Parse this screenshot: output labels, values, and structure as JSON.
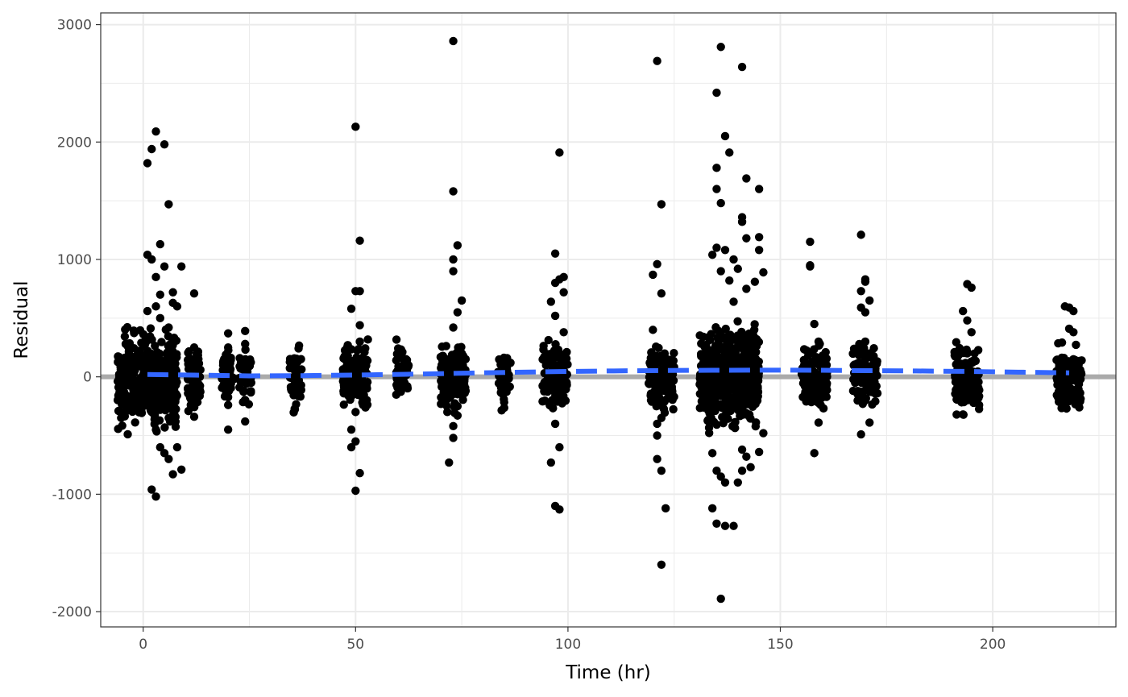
{
  "chart_data": {
    "type": "scatter",
    "title": "",
    "xlabel": "Time (hr)",
    "ylabel": "Residual",
    "xlim": [
      -10,
      229
    ],
    "ylim": [
      -2130,
      3100
    ],
    "x_ticks": [
      0,
      50,
      100,
      150,
      200
    ],
    "x_tick_labels": [
      "0",
      "50",
      "100",
      "150",
      "200"
    ],
    "y_ticks": [
      -2000,
      -1000,
      0,
      1000,
      2000,
      3000
    ],
    "y_tick_labels": [
      "-2000",
      "-1000",
      "0",
      "1000",
      "2000",
      "3000"
    ],
    "grid": true,
    "reference_line": {
      "y": 0,
      "color": "#aaaaaa"
    },
    "smooth_line": {
      "style": "dashed",
      "color": "#3366ff",
      "points": [
        [
          1,
          20
        ],
        [
          12,
          15
        ],
        [
          25,
          8
        ],
        [
          37,
          10
        ],
        [
          50,
          15
        ],
        [
          62,
          22
        ],
        [
          74,
          30
        ],
        [
          86,
          38
        ],
        [
          98,
          45
        ],
        [
          110,
          50
        ],
        [
          122,
          54
        ],
        [
          134,
          56
        ],
        [
          146,
          57
        ],
        [
          158,
          56
        ],
        [
          170,
          53
        ],
        [
          182,
          50
        ],
        [
          194,
          46
        ],
        [
          206,
          40
        ],
        [
          218,
          34
        ]
      ]
    },
    "points_color": "#000000",
    "points": [
      [
        1,
        1040
      ],
      [
        1,
        1820
      ],
      [
        2,
        1940
      ],
      [
        3,
        2090
      ],
      [
        4,
        1130
      ],
      [
        5,
        1980
      ],
      [
        6,
        1470
      ],
      [
        2,
        1000
      ],
      [
        3,
        850
      ],
      [
        5,
        940
      ],
      [
        7,
        720
      ],
      [
        8,
        600
      ],
      [
        9,
        940
      ],
      [
        3,
        600
      ],
      [
        4,
        500
      ],
      [
        6,
        420
      ],
      [
        2,
        -960
      ],
      [
        3,
        -1020
      ],
      [
        4,
        -600
      ],
      [
        5,
        -650
      ],
      [
        6,
        -700
      ],
      [
        7,
        -830
      ],
      [
        9,
        -790
      ],
      [
        8,
        -600
      ],
      [
        3,
        -450
      ],
      [
        2,
        -300
      ],
      [
        6,
        -350
      ],
      [
        1,
        560
      ],
      [
        4,
        700
      ],
      [
        7,
        630
      ],
      [
        12,
        710
      ],
      [
        12,
        250
      ],
      [
        12,
        -340
      ],
      [
        13,
        150
      ],
      [
        12,
        -100
      ],
      [
        20,
        370
      ],
      [
        20,
        250
      ],
      [
        20,
        -450
      ],
      [
        20,
        -240
      ],
      [
        24,
        390
      ],
      [
        24,
        280
      ],
      [
        24,
        -380
      ],
      [
        24,
        -200
      ],
      [
        24,
        50
      ],
      [
        36,
        50
      ],
      [
        36,
        -40
      ],
      [
        36,
        20
      ],
      [
        48,
        250
      ],
      [
        49,
        580
      ],
      [
        50,
        730
      ],
      [
        51,
        730
      ],
      [
        50,
        2130
      ],
      [
        51,
        1160
      ],
      [
        51,
        440
      ],
      [
        50,
        -970
      ],
      [
        50,
        -550
      ],
      [
        51,
        -820
      ],
      [
        49,
        -450
      ],
      [
        49,
        -600
      ],
      [
        51,
        300
      ],
      [
        50,
        -300
      ],
      [
        61,
        50
      ],
      [
        61,
        -30
      ],
      [
        61,
        10
      ],
      [
        72,
        -730
      ],
      [
        73,
        -520
      ],
      [
        73,
        1580
      ],
      [
        73,
        900
      ],
      [
        73,
        1000
      ],
      [
        74,
        1120
      ],
      [
        74,
        550
      ],
      [
        75,
        650
      ],
      [
        73,
        2860
      ],
      [
        72,
        150
      ],
      [
        74,
        -250
      ],
      [
        73,
        -420
      ],
      [
        74,
        -330
      ],
      [
        73,
        420
      ],
      [
        75,
        200
      ],
      [
        85,
        40
      ],
      [
        85,
        -20
      ],
      [
        85,
        10
      ],
      [
        96,
        -730
      ],
      [
        97,
        -1100
      ],
      [
        98,
        -1130
      ],
      [
        97,
        1050
      ],
      [
        98,
        1910
      ],
      [
        99,
        850
      ],
      [
        97,
        800
      ],
      [
        98,
        830
      ],
      [
        99,
        720
      ],
      [
        96,
        640
      ],
      [
        97,
        520
      ],
      [
        98,
        -600
      ],
      [
        97,
        -400
      ],
      [
        99,
        380
      ],
      [
        121,
        960
      ],
      [
        121,
        2690
      ],
      [
        122,
        1470
      ],
      [
        122,
        710
      ],
      [
        123,
        -1120
      ],
      [
        121,
        -700
      ],
      [
        122,
        -1600
      ],
      [
        121,
        -500
      ],
      [
        121,
        -400
      ],
      [
        122,
        -350
      ],
      [
        120,
        400
      ],
      [
        120,
        870
      ],
      [
        122,
        -800
      ],
      [
        134,
        -1120
      ],
      [
        135,
        -1250
      ],
      [
        137,
        -1270
      ],
      [
        136,
        -1890
      ],
      [
        135,
        1600
      ],
      [
        135,
        1780
      ],
      [
        136,
        2810
      ],
      [
        135,
        2420
      ],
      [
        137,
        2050
      ],
      [
        138,
        1910
      ],
      [
        136,
        1480
      ],
      [
        141,
        2640
      ],
      [
        142,
        1690
      ],
      [
        145,
        1600
      ],
      [
        141,
        1360
      ],
      [
        141,
        1320
      ],
      [
        142,
        1180
      ],
      [
        145,
        1190
      ],
      [
        145,
        1080
      ],
      [
        146,
        890
      ],
      [
        144,
        810
      ],
      [
        139,
        1000
      ],
      [
        140,
        920
      ],
      [
        142,
        750
      ],
      [
        134,
        1040
      ],
      [
        135,
        1100
      ],
      [
        136,
        900
      ],
      [
        137,
        1080
      ],
      [
        138,
        820
      ],
      [
        139,
        640
      ],
      [
        137,
        -900
      ],
      [
        139,
        -1270
      ],
      [
        141,
        -800
      ],
      [
        142,
        -680
      ],
      [
        143,
        -770
      ],
      [
        145,
        -640
      ],
      [
        146,
        -480
      ],
      [
        140,
        -900
      ],
      [
        141,
        -620
      ],
      [
        135,
        -800
      ],
      [
        134,
        -650
      ],
      [
        136,
        -850
      ],
      [
        157,
        1150
      ],
      [
        157,
        950
      ],
      [
        157,
        940
      ],
      [
        158,
        450
      ],
      [
        158,
        -650
      ],
      [
        159,
        -390
      ],
      [
        159,
        300
      ],
      [
        157,
        200
      ],
      [
        158,
        -200
      ],
      [
        157,
        -100
      ],
      [
        169,
        1210
      ],
      [
        170,
        830
      ],
      [
        170,
        810
      ],
      [
        169,
        730
      ],
      [
        170,
        550
      ],
      [
        169,
        590
      ],
      [
        171,
        650
      ],
      [
        169,
        -490
      ],
      [
        171,
        -390
      ],
      [
        170,
        300
      ],
      [
        170,
        -200
      ],
      [
        171,
        200
      ],
      [
        193,
        560
      ],
      [
        194,
        790
      ],
      [
        195,
        760
      ],
      [
        194,
        480
      ],
      [
        193,
        -320
      ],
      [
        194,
        -200
      ],
      [
        195,
        380
      ],
      [
        194,
        200
      ],
      [
        193,
        -100
      ],
      [
        217,
        600
      ],
      [
        218,
        590
      ],
      [
        219,
        560
      ],
      [
        218,
        410
      ],
      [
        219,
        380
      ],
      [
        217,
        -240
      ],
      [
        218,
        -180
      ],
      [
        218,
        100
      ],
      [
        219,
        150
      ],
      [
        217,
        -100
      ]
    ]
  }
}
